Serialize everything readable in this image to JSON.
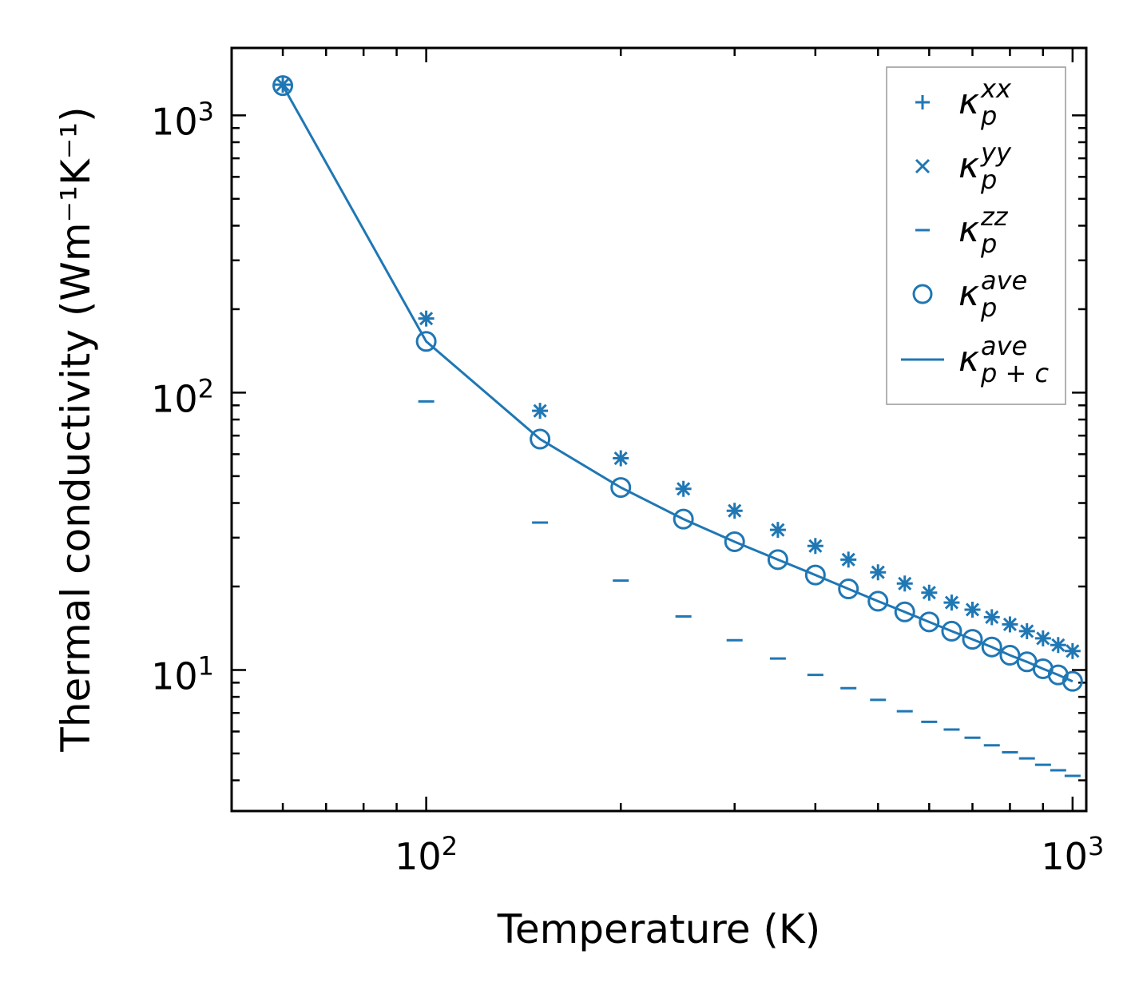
{
  "chart_data": {
    "type": "scatter",
    "xscale": "log",
    "yscale": "log",
    "xlabel": "Temperature (K)",
    "ylabel": "Thermal conductivity (Wm⁻¹K⁻¹)",
    "xlim": [
      50,
      1050
    ],
    "ylim": [
      3.1,
      1750
    ],
    "x_ticks": [
      {
        "value": 100,
        "base": "10",
        "exp": "2"
      },
      {
        "value": 1000,
        "base": "10",
        "exp": "3"
      }
    ],
    "y_ticks": [
      {
        "value": 10,
        "base": "10",
        "exp": "1"
      },
      {
        "value": 100,
        "base": "10",
        "exp": "2"
      },
      {
        "value": 1000,
        "base": "10",
        "exp": "3"
      }
    ],
    "x": [
      60,
      100,
      150,
      200,
      250,
      300,
      350,
      400,
      450,
      500,
      550,
      600,
      650,
      700,
      750,
      800,
      850,
      900,
      950,
      1000
    ],
    "series": [
      {
        "name": "kxx",
        "symbol": "κ",
        "sub": "p",
        "sup": "xx",
        "marker": "plus",
        "values": [
          1290,
          185,
          86,
          58,
          45,
          37.5,
          32,
          28,
          25,
          22.5,
          20.5,
          19,
          17.5,
          16.5,
          15.5,
          14.6,
          13.8,
          13.0,
          12.3,
          11.7
        ]
      },
      {
        "name": "kyy",
        "symbol": "κ",
        "sub": "p",
        "sup": "yy",
        "marker": "x",
        "values": [
          1290,
          185,
          86,
          58,
          45,
          37.5,
          32,
          28,
          25,
          22.5,
          20.5,
          19,
          17.5,
          16.5,
          15.5,
          14.6,
          13.8,
          13.0,
          12.3,
          11.7
        ]
      },
      {
        "name": "kzz",
        "symbol": "κ",
        "sub": "p",
        "sup": "zz",
        "marker": "hline",
        "values": [
          1290,
          93,
          34,
          21,
          15.6,
          12.8,
          11,
          9.6,
          8.6,
          7.8,
          7.1,
          6.5,
          6.1,
          5.7,
          5.35,
          5.05,
          4.8,
          4.55,
          4.35,
          4.15
        ]
      },
      {
        "name": "kave",
        "symbol": "κ",
        "sub": "p",
        "sup": "ave",
        "marker": "circle",
        "values": [
          1280,
          153,
          68,
          45.5,
          35,
          29,
          25,
          22,
          19.6,
          17.7,
          16.2,
          14.9,
          13.8,
          12.9,
          12.1,
          11.3,
          10.7,
          10.1,
          9.6,
          9.1
        ]
      },
      {
        "name": "kave_pc",
        "symbol": "κ",
        "sub": "p + c",
        "sup": "ave",
        "marker": "line",
        "values": [
          1280,
          153,
          68,
          45.5,
          35,
          29,
          25,
          22,
          19.6,
          17.7,
          16.2,
          14.9,
          13.8,
          12.9,
          12.1,
          11.3,
          10.7,
          10.1,
          9.6,
          9.1
        ]
      }
    ],
    "legend": {
      "position": "top-right"
    },
    "colors": {
      "series": "#1f77b4",
      "axes": "#000000",
      "legend_border": "#999999"
    }
  }
}
